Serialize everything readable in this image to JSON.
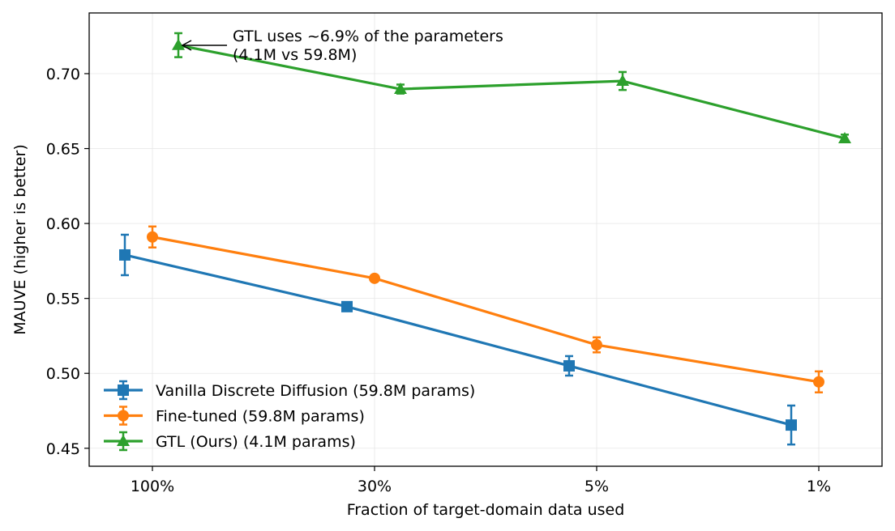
{
  "chart_data": {
    "type": "line",
    "title": "",
    "xlabel": "Fraction of target-domain data used",
    "ylabel": "MAUVE (higher is better)",
    "categories": [
      "100%",
      "30%",
      "5%",
      "1%"
    ],
    "yticks": [
      "0.45",
      "0.50",
      "0.55",
      "0.60",
      "0.65",
      "0.70"
    ],
    "ylim": [
      0.438,
      0.7405
    ],
    "grid": true,
    "legend_position": "lower-left",
    "series": [
      {
        "name": "Vanilla Discrete Diffusion (59.8M params)",
        "color": "#1f77b4",
        "marker": "square",
        "values": [
          0.579,
          0.5445,
          0.505,
          0.4655
        ],
        "errors": [
          0.0135,
          0.002,
          0.0065,
          0.013
        ]
      },
      {
        "name": "Fine-tuned (59.8M params)",
        "color": "#ff7f0e",
        "marker": "circle",
        "values": [
          0.591,
          0.5634,
          0.519,
          0.4943
        ],
        "errors": [
          0.007,
          0.002,
          0.005,
          0.007
        ]
      },
      {
        "name": "GTL (Ours) (4.1M params)",
        "color": "#2ca02c",
        "marker": "triangle",
        "values": [
          0.719,
          0.6897,
          0.6951,
          0.6568
        ],
        "errors": [
          0.008,
          0.003,
          0.006,
          0.0025
        ]
      }
    ],
    "annotation": {
      "line1": "GTL uses ~6.9% of the parameters",
      "line2": "(4.1M vs 59.8M)"
    }
  }
}
